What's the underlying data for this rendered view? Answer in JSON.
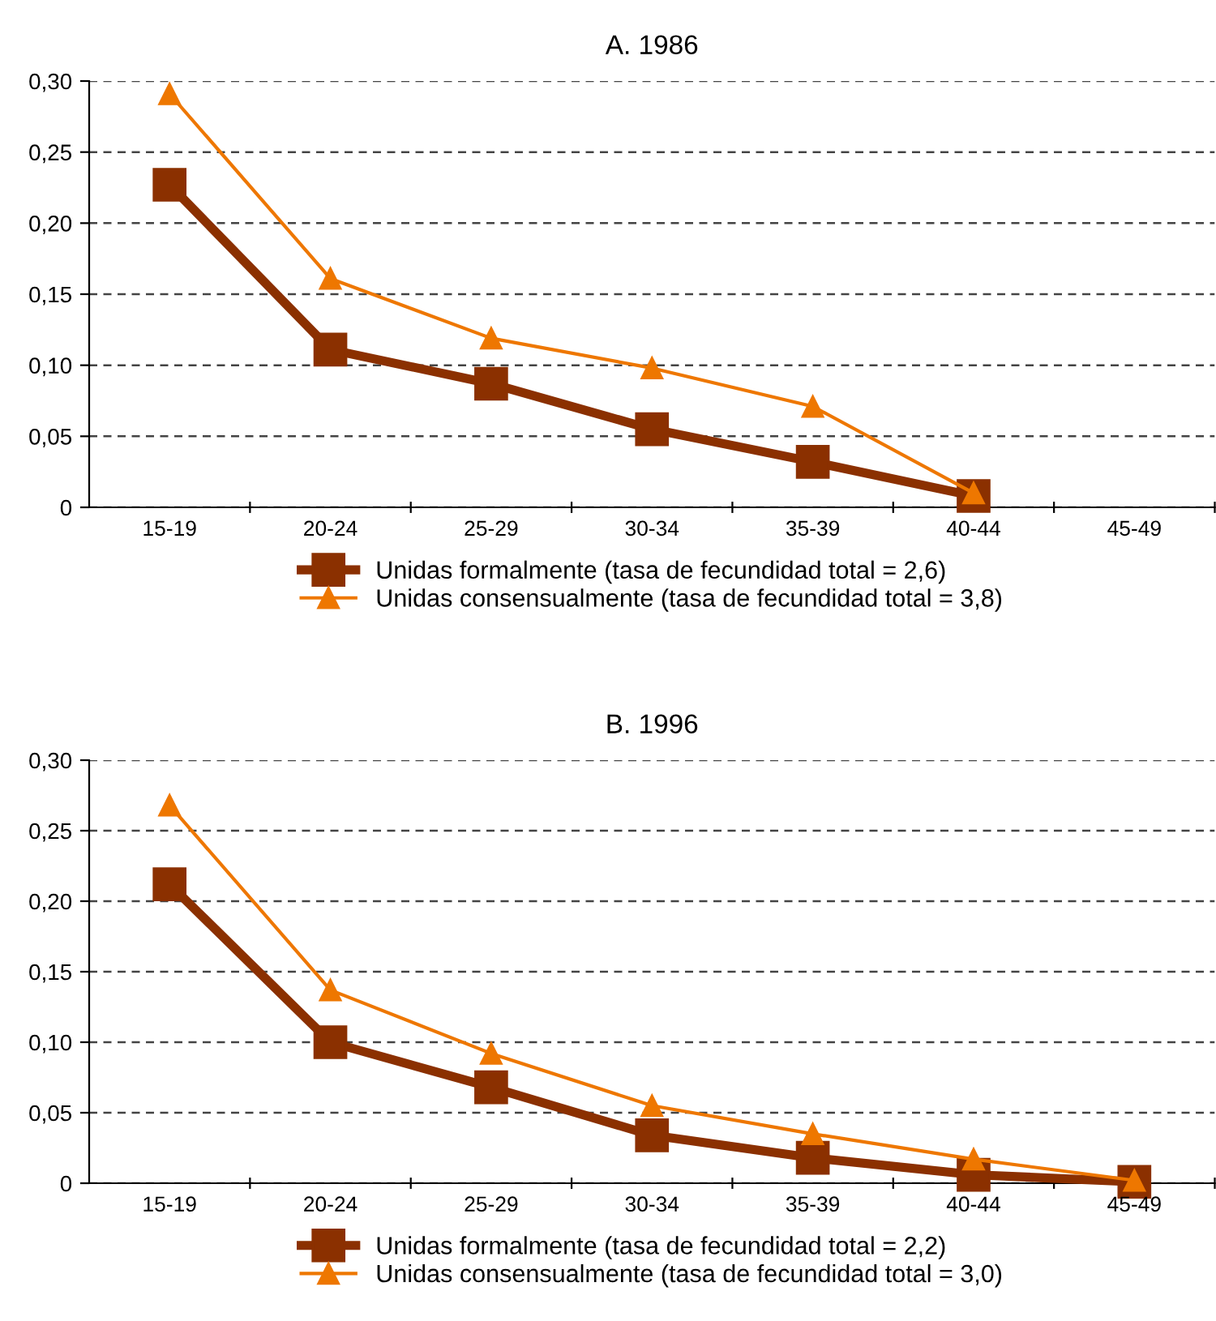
{
  "chart_data": [
    {
      "type": "line",
      "title": "A. 1986",
      "categories": [
        "15-19",
        "20-24",
        "25-29",
        "30-34",
        "35-39",
        "40-44",
        "45-49"
      ],
      "series": [
        {
          "name": "Unidas formalmente (tasa de fecundidad total = 2,6)",
          "color": "#8b3000",
          "marker": "square",
          "values": [
            0.227,
            0.111,
            0.087,
            0.055,
            0.032,
            0.008,
            null
          ]
        },
        {
          "name": "Unidas consensualmente (tasa de fecundidad total = 3,8)",
          "color": "#ee7700",
          "marker": "triangle",
          "values": [
            0.291,
            0.161,
            0.119,
            0.098,
            0.071,
            0.01,
            null
          ]
        }
      ],
      "ylim": [
        0,
        0.3
      ],
      "yticks": [
        0,
        {
          "value": 0.05,
          "label": "0,05"
        },
        {
          "value": 0.1,
          "label": "0,10"
        },
        {
          "value": 0.15,
          "label": "0,15"
        },
        {
          "value": 0.2,
          "label": "0,20"
        },
        {
          "value": 0.25,
          "label": "0,25"
        },
        {
          "value": 0.3,
          "label": "0,30"
        }
      ],
      "grid": "y",
      "legend": "bottom",
      "line_style": "solid"
    },
    {
      "type": "line",
      "title": "B. 1996",
      "categories": [
        "15-19",
        "20-24",
        "25-29",
        "30-34",
        "35-39",
        "40-44",
        "45-49"
      ],
      "series": [
        {
          "name": "Unidas formalmente (tasa de fecundidad total = 2,2)",
          "color": "#8b3000",
          "marker": "square",
          "values": [
            0.212,
            0.1,
            0.068,
            0.034,
            0.018,
            0.006,
            0.001
          ]
        },
        {
          "name": "Unidas consensualmente (tasa de fecundidad total = 3,0)",
          "color": "#ee7700",
          "marker": "triangle",
          "values": [
            0.268,
            0.137,
            0.092,
            0.055,
            0.035,
            0.017,
            0.002
          ]
        }
      ],
      "ylim": [
        0,
        0.3
      ],
      "yticks": [
        0,
        {
          "value": 0.05,
          "label": "0,05"
        },
        {
          "value": 0.1,
          "label": "0,10"
        },
        {
          "value": 0.15,
          "label": "0,15"
        },
        {
          "value": 0.2,
          "label": "0,20"
        },
        {
          "value": 0.25,
          "label": "0,25"
        },
        {
          "value": 0.3,
          "label": "0,30"
        }
      ],
      "grid": "y",
      "legend": "bottom",
      "line_style": "solid"
    }
  ]
}
